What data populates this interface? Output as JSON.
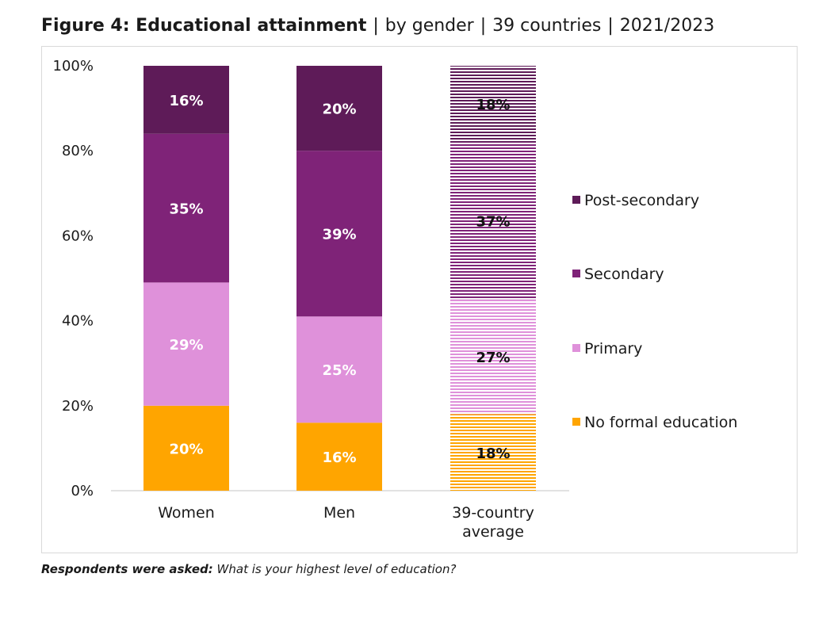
{
  "title": {
    "bold": "Figure 4: Educational attainment",
    "parts": [
      "by gender",
      "39 countries",
      "2021/2023"
    ],
    "separator": "|"
  },
  "footnote": {
    "label": "Respondents were asked:",
    "question": "What is your highest level of education?"
  },
  "chart_data": {
    "type": "bar",
    "stacked": true,
    "categories": [
      "Women",
      "Men",
      "39-country average"
    ],
    "category_lines": [
      [
        "Women"
      ],
      [
        "Men"
      ],
      [
        "39-country",
        "average"
      ]
    ],
    "series": [
      {
        "name": "No formal education",
        "values": [
          20,
          16,
          18
        ],
        "labels": [
          "20%",
          "16%",
          "18%"
        ],
        "color": "#FFA500"
      },
      {
        "name": "Primary",
        "values": [
          29,
          25,
          27
        ],
        "labels": [
          "29%",
          "25%",
          "27%"
        ],
        "color": "#DF91DA"
      },
      {
        "name": "Secondary",
        "values": [
          35,
          39,
          37
        ],
        "labels": [
          "35%",
          "39%",
          "37%"
        ],
        "color": "#7F2378"
      },
      {
        "name": "Post-secondary",
        "values": [
          16,
          20,
          18
        ],
        "labels": [
          "16%",
          "20%",
          "18%"
        ],
        "color": "#5E1B58"
      }
    ],
    "hatched_categories": [
      "39-country average"
    ],
    "ylim": [
      0,
      100
    ],
    "yticks": [
      "0%",
      "20%",
      "40%",
      "60%",
      "80%",
      "100%"
    ],
    "legend_position": "right",
    "grid": false
  }
}
